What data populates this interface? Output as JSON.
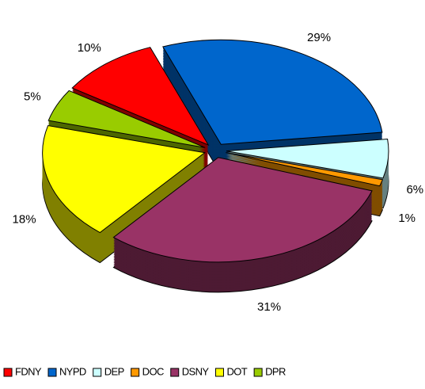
{
  "chart_data": {
    "type": "pie",
    "categories": [
      "FDNY",
      "NYPD",
      "DEP",
      "DOC",
      "DSNY",
      "DOT",
      "DPR"
    ],
    "values": [
      10,
      29,
      6,
      1,
      31,
      18,
      5
    ],
    "value_labels": [
      "10%",
      "29%",
      "6%",
      "1%",
      "31%",
      "18%",
      "5%"
    ],
    "colors": [
      "#ff0000",
      "#0066cc",
      "#ccffff",
      "#ff9900",
      "#993366",
      "#ffff00",
      "#99cc00"
    ],
    "legend": "bottom"
  }
}
